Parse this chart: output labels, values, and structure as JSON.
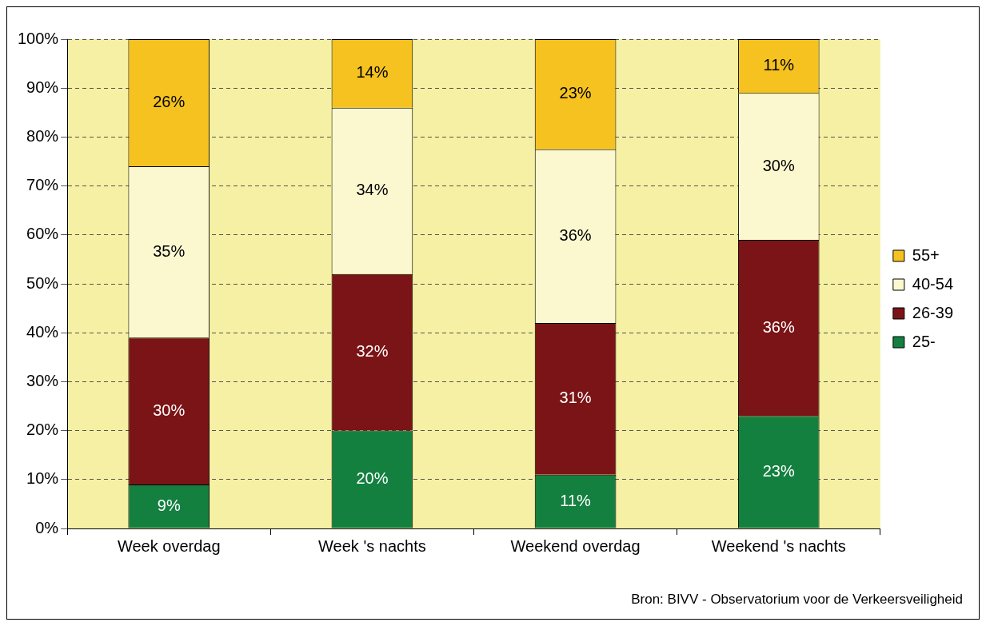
{
  "chart_data": {
    "type": "bar",
    "stacked": true,
    "categories": [
      "Week overdag",
      "Week 's nachts",
      "Weekend overdag",
      "Weekend 's nachts"
    ],
    "series": [
      {
        "name": "25-",
        "color": "#138040",
        "values": [
          9,
          20,
          11,
          23
        ],
        "value_labels": [
          "9%",
          "20%",
          "11%",
          "23%"
        ]
      },
      {
        "name": "26-39",
        "color": "#7b1416",
        "values": [
          30,
          32,
          31,
          36
        ],
        "value_labels": [
          "30%",
          "32%",
          "31%",
          "36%"
        ]
      },
      {
        "name": "40-54",
        "color": "#fbf8d0",
        "values": [
          35,
          34,
          35.5,
          30
        ],
        "value_labels": [
          "35%",
          "34%",
          "36%",
          "30%"
        ]
      },
      {
        "name": "55+",
        "color": "#f5c220",
        "values": [
          26,
          14,
          22.5,
          11
        ],
        "value_labels": [
          "26%",
          "14%",
          "23%",
          "11%"
        ]
      }
    ],
    "ylim": [
      0,
      100
    ],
    "yticks": [
      {
        "value": 0,
        "label": "0%"
      },
      {
        "value": 10,
        "label": "10%"
      },
      {
        "value": 20,
        "label": "20%"
      },
      {
        "value": 30,
        "label": "30%"
      },
      {
        "value": 40,
        "label": "40%"
      },
      {
        "value": 50,
        "label": "50%"
      },
      {
        "value": 60,
        "label": "60%"
      },
      {
        "value": 70,
        "label": "70%"
      },
      {
        "value": 80,
        "label": "80%"
      },
      {
        "value": 90,
        "label": "90%"
      },
      {
        "value": 100,
        "label": "100%"
      }
    ],
    "grid": "y",
    "legend": "right",
    "annotations": [
      "Bron: BIVV - Observatorium voor de Verkeersveiligheid"
    ]
  }
}
